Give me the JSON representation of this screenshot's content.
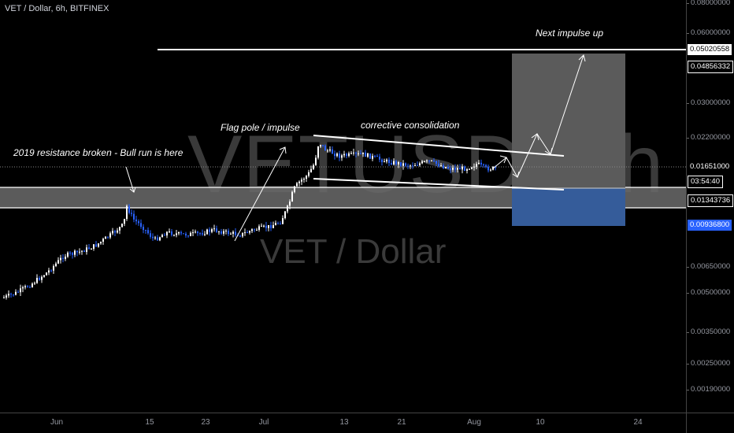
{
  "header": {
    "symbol_info": "VET / Dollar, 6h, BITFINEX"
  },
  "watermark": {
    "ticker": "VETUSD, 6h",
    "name": "VET / Dollar"
  },
  "annotations": {
    "resistance": "2019 resistance broken - Bull run is here",
    "flag_pole": "Flag pole / impulse",
    "consolidation": "corrective consolidation",
    "next_impulse": "Next impulse up"
  },
  "price_axis": {
    "ticks": [
      "0.08000000",
      "0.06000000",
      "0.03000000",
      "0.02200000",
      "0.00650000",
      "0.00500000",
      "0.00350000",
      "0.00250000",
      "0.00190000"
    ],
    "labels": {
      "target": "0.05020558",
      "level2": "0.04856332",
      "current": "0.01651000",
      "countdown": "03:54:40",
      "entry": "0.01343736",
      "stop": "0.00936800"
    }
  },
  "time_axis": {
    "labels": [
      "Jun",
      "15",
      "23",
      "Jul",
      "13",
      "21",
      "Aug",
      "10",
      "24"
    ]
  },
  "colors": {
    "background": "#000000",
    "candle_up": "#ffffff",
    "candle_down": "#2962ff",
    "target_zone": "#5b5b5b",
    "stop_zone": "#355c9a",
    "resistance_band": "#6b6b6b"
  }
}
